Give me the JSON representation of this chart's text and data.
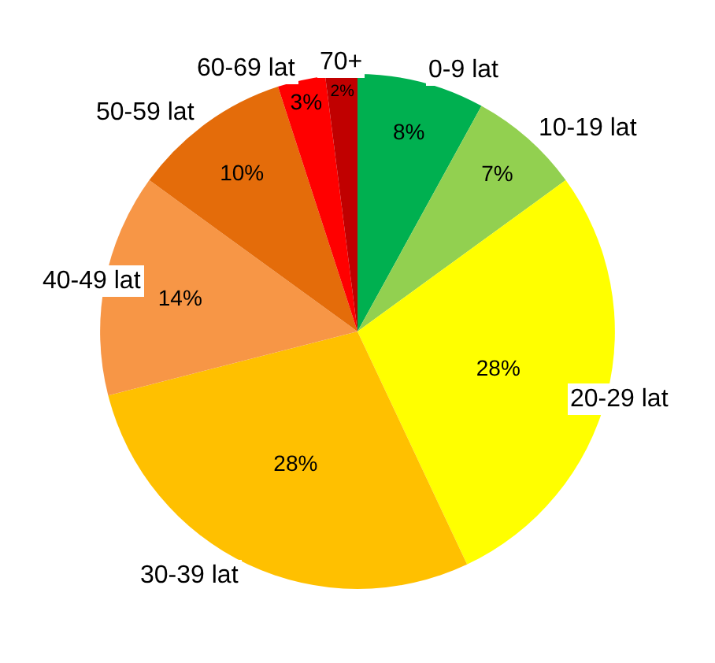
{
  "chart_data": {
    "type": "pie",
    "categories": [
      "0-9 lat",
      "10-19 lat",
      "20-29 lat",
      "30-39 lat",
      "40-49 lat",
      "50-59 lat",
      "60-69 lat",
      "70+"
    ],
    "values": [
      8,
      7,
      28,
      28,
      14,
      10,
      3,
      2
    ],
    "colors": [
      "#00b050",
      "#92d050",
      "#ffff00",
      "#ffc000",
      "#f79646",
      "#e46c0a",
      "#ff0000",
      "#c00000"
    ],
    "value_labels": [
      "8%",
      "7%",
      "28%",
      "28%",
      "14%",
      "10%",
      "3%",
      "2%"
    ],
    "legend": false
  }
}
